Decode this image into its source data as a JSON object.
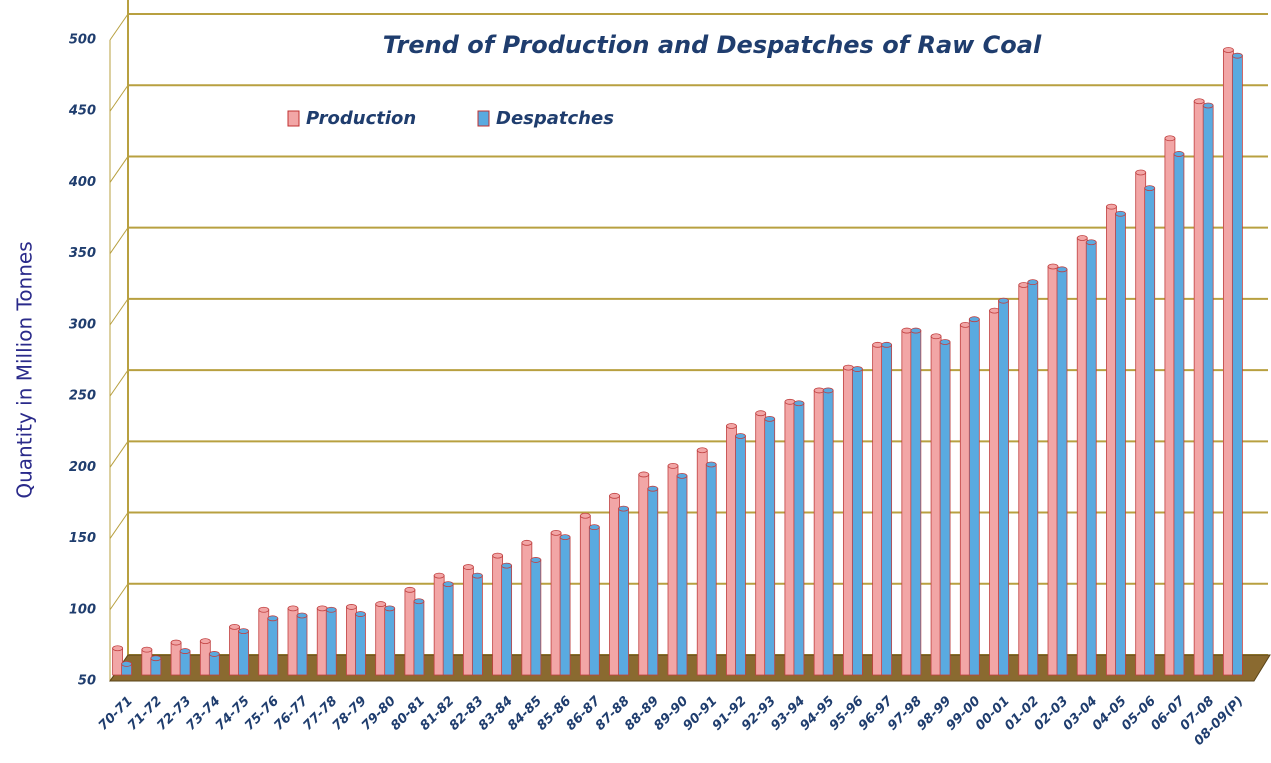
{
  "chart_data": {
    "type": "bar",
    "title": "Trend of Production and Despatches of Raw Coal",
    "y_label": "Quantity in Million Tonnes",
    "categories": [
      "70-71",
      "71-72",
      "72-73",
      "73-74",
      "74-75",
      "75-76",
      "76-77",
      "77-78",
      "78-79",
      "79-80",
      "80-81",
      "81-82",
      "82-83",
      "83-84",
      "84-85",
      "85-86",
      "86-87",
      "87-88",
      "88-89",
      "89-90",
      "90-91",
      "91-92",
      "92-93",
      "93-94",
      "94-95",
      "95-96",
      "96-97",
      "97-98",
      "98-99",
      "99-00",
      "00-01",
      "01-02",
      "02-03",
      "03-04",
      "04-05",
      "05-06",
      "06-07",
      "07-08",
      "08-09(P)"
    ],
    "series": [
      {
        "name": "Production",
        "color": "#f2a6a6",
        "values": [
          73,
          72,
          77,
          78,
          88,
          100,
          101,
          101,
          102,
          104,
          114,
          124,
          130,
          138,
          147,
          154,
          166,
          180,
          195,
          201,
          212,
          229,
          238,
          246,
          254,
          270,
          286,
          296,
          292,
          300,
          310,
          328,
          341,
          361,
          383,
          407,
          431,
          457,
          493
        ]
      },
      {
        "name": "Despatches",
        "color": "#5aaae0",
        "values": [
          62,
          66,
          71,
          69,
          85,
          94,
          96,
          100,
          97,
          101,
          106,
          118,
          124,
          131,
          135,
          151,
          158,
          171,
          185,
          194,
          202,
          222,
          234,
          245,
          254,
          269,
          286,
          296,
          288,
          304,
          317,
          330,
          339,
          358,
          378,
          396,
          420,
          454,
          489
        ]
      }
    ],
    "ylim": [
      50,
      500
    ],
    "yticks": [
      50,
      100,
      150,
      200,
      250,
      300,
      350,
      400,
      450,
      500
    ],
    "grid": true
  }
}
